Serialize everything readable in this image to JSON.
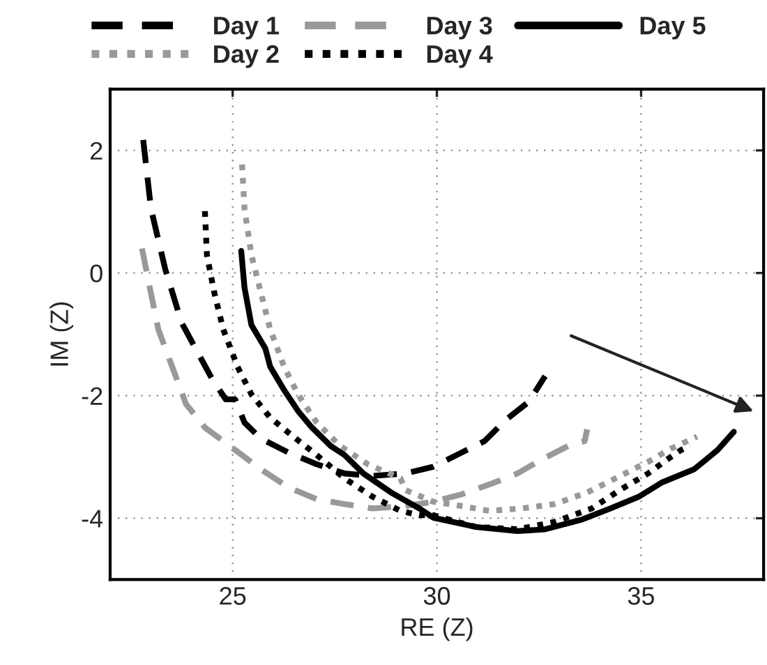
{
  "chart_data": {
    "type": "line",
    "xlabel": "RE (Z)",
    "ylabel": "IM (Z)",
    "xlim": [
      22,
      38
    ],
    "ylim": [
      -5,
      3
    ],
    "xticks": [
      25,
      30,
      35
    ],
    "yticks": [
      -4,
      -2,
      0,
      2
    ],
    "grid": true,
    "legend": "top",
    "series": [
      {
        "name": "Day 1",
        "color": "#000000",
        "line_style": "dashed",
        "x": [
          22.81,
          23.0,
          23.35,
          23.75,
          24.09,
          24.49,
          24.83,
          25.06,
          25.29,
          25.69,
          26.37,
          27.06,
          27.74,
          28.43,
          29.23,
          29.91,
          30.6,
          31.17,
          31.68,
          32.25,
          32.65
        ],
        "values": [
          2.17,
          1.05,
          0.06,
          -0.81,
          -1.23,
          -1.72,
          -2.06,
          -2.06,
          -2.44,
          -2.7,
          -2.93,
          -3.12,
          -3.27,
          -3.31,
          -3.27,
          -3.16,
          -2.93,
          -2.74,
          -2.4,
          -2.1,
          -1.68
        ]
      },
      {
        "name": "Day 2",
        "color": "#999999",
        "line_style": "dotted",
        "x": [
          25.23,
          25.29,
          25.46,
          25.69,
          25.92,
          26.26,
          26.6,
          27.06,
          27.63,
          28.31,
          29.11,
          29.23,
          29.91,
          30.6,
          31.28,
          32.08,
          32.88,
          33.68,
          34.37,
          35.17,
          35.74,
          36.37
        ],
        "values": [
          1.77,
          1.05,
          0.29,
          -0.32,
          -0.92,
          -1.53,
          -1.98,
          -2.44,
          -2.82,
          -3.12,
          -3.35,
          -3.54,
          -3.73,
          -3.8,
          -3.88,
          -3.84,
          -3.77,
          -3.58,
          -3.35,
          -3.08,
          -2.86,
          -2.67
        ]
      },
      {
        "name": "Day 3",
        "color": "#999999",
        "line_style": "dashed",
        "x": [
          22.78,
          22.95,
          23.18,
          23.52,
          23.86,
          24.32,
          24.77,
          25.23,
          25.69,
          26.37,
          27.06,
          27.74,
          28.43,
          29.23,
          29.91,
          30.6,
          31.4,
          31.97,
          32.54,
          33.22,
          33.62,
          33.68
        ],
        "values": [
          0.4,
          -0.17,
          -0.92,
          -1.53,
          -2.14,
          -2.52,
          -2.74,
          -2.97,
          -3.2,
          -3.5,
          -3.69,
          -3.77,
          -3.84,
          -3.8,
          -3.73,
          -3.61,
          -3.42,
          -3.27,
          -3.05,
          -2.82,
          -2.74,
          -2.55
        ]
      },
      {
        "name": "Day 4",
        "color": "#000000",
        "line_style": "dotted",
        "x": [
          24.32,
          24.37,
          24.55,
          24.77,
          25.12,
          25.46,
          25.92,
          26.49,
          27.06,
          27.74,
          28.43,
          29.11,
          29.57,
          29.91,
          30.94,
          31.97,
          32.88,
          33.79,
          34.48,
          35.17,
          35.62,
          35.97,
          36.2
        ],
        "values": [
          1.01,
          0.29,
          -0.32,
          -0.92,
          -1.53,
          -1.98,
          -2.36,
          -2.67,
          -2.97,
          -3.35,
          -3.65,
          -3.88,
          -3.95,
          -3.95,
          -4.14,
          -4.18,
          -4.06,
          -3.84,
          -3.54,
          -3.27,
          -3.05,
          -2.89,
          -2.82
        ]
      },
      {
        "name": "Day 5",
        "color": "#000000",
        "line_style": "solid",
        "x": [
          25.21,
          25.29,
          25.46,
          25.8,
          25.92,
          26.26,
          26.6,
          26.94,
          27.4,
          27.74,
          28.2,
          28.88,
          29.57,
          29.91,
          30.94,
          31.97,
          32.65,
          33.56,
          34.25,
          34.94,
          35.5,
          36.3,
          36.87,
          37.27
        ],
        "values": [
          0.36,
          -0.24,
          -0.85,
          -1.23,
          -1.53,
          -1.91,
          -2.25,
          -2.52,
          -2.82,
          -2.97,
          -3.27,
          -3.58,
          -3.84,
          -3.99,
          -4.14,
          -4.21,
          -4.18,
          -4.02,
          -3.84,
          -3.65,
          -3.42,
          -3.2,
          -2.89,
          -2.59
        ]
      }
    ]
  }
}
